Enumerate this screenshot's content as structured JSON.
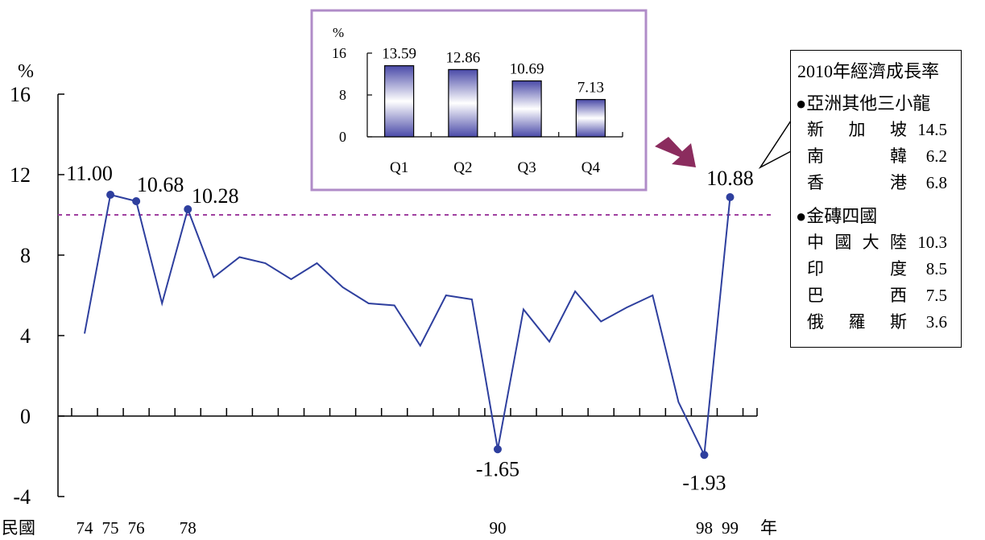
{
  "chart_data": [
    {
      "type": "line",
      "title": "",
      "ylabel": "%",
      "xlabel": "年",
      "x_prefix": "民國",
      "ylim": [
        -4,
        16
      ],
      "yticks": [
        -4,
        0,
        4,
        8,
        12,
        16
      ],
      "x": [
        74,
        75,
        76,
        77,
        78,
        79,
        80,
        81,
        82,
        83,
        84,
        85,
        86,
        87,
        88,
        89,
        90,
        91,
        92,
        93,
        94,
        95,
        96,
        97,
        98,
        99
      ],
      "x_tick_labels": [
        "74",
        "75",
        "76",
        "78",
        "90",
        "98",
        "99"
      ],
      "series": [
        {
          "name": "",
          "color": "#2e3f9e",
          "values": [
            4.1,
            11.0,
            10.68,
            5.6,
            10.28,
            6.9,
            7.9,
            7.6,
            6.8,
            7.6,
            6.4,
            5.6,
            5.5,
            3.5,
            6.0,
            5.8,
            -1.65,
            5.3,
            3.7,
            6.2,
            4.7,
            5.4,
            6.0,
            0.7,
            -1.93,
            10.88
          ]
        }
      ],
      "labeled_points": [
        {
          "x": 75,
          "label": "11.00"
        },
        {
          "x": 76,
          "label": "10.68"
        },
        {
          "x": 78,
          "label": "10.28"
        },
        {
          "x": 90,
          "label": "-1.65"
        },
        {
          "x": 98,
          "label": "-1.93"
        },
        {
          "x": 99,
          "label": "10.88"
        }
      ],
      "reference_line": {
        "y": 10,
        "style": "dashed",
        "color": "#a040a0"
      }
    },
    {
      "type": "bar",
      "ylabel": "%",
      "ylim": [
        0,
        16
      ],
      "yticks": [
        0,
        8,
        16
      ],
      "categories": [
        "Q1",
        "Q2",
        "Q3",
        "Q4"
      ],
      "values": [
        13.59,
        12.86,
        10.69,
        7.13
      ],
      "value_labels": [
        "13.59",
        "12.86",
        "10.69",
        "7.13"
      ],
      "frame_color": "#b08cc8",
      "bar_color": "#4a4aa8"
    }
  ],
  "legend": {
    "title": "2010年經濟成長率",
    "groups": [
      {
        "heading": "●亞洲其他三小龍",
        "rows": [
          {
            "name": "新加坡",
            "value": "14.5"
          },
          {
            "name": "南韓",
            "value": "6.2"
          },
          {
            "name": "香港",
            "value": "6.8"
          }
        ]
      },
      {
        "heading": "●金磚四國",
        "rows": [
          {
            "name": "中國大陸",
            "value": "10.3"
          },
          {
            "name": "印度",
            "value": "8.5"
          },
          {
            "name": "巴西",
            "value": "7.5"
          },
          {
            "name": "俄羅斯",
            "value": "3.6"
          }
        ]
      }
    ]
  },
  "arrow_color": "#8b2c5e"
}
